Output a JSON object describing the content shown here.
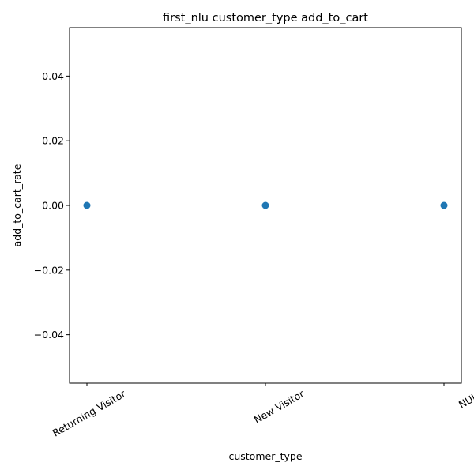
{
  "chart_data": {
    "type": "scatter",
    "title": "first_nlu customer_type add_to_cart",
    "xlabel": "customer_type",
    "ylabel": "add_to_cart_rate",
    "categories": [
      "Returning Visitor",
      "New Visitor",
      "NULL"
    ],
    "values": [
      0.0,
      0.0,
      0.0
    ],
    "ylim": [
      -0.055,
      0.055
    ],
    "yticks": [
      -0.04,
      -0.02,
      0.0,
      0.02,
      0.04
    ],
    "ytick_labels": [
      "−0.04",
      "−0.02",
      "0.00",
      "0.02",
      "0.04"
    ],
    "grid": false,
    "marker_color": "#1f77b4"
  }
}
